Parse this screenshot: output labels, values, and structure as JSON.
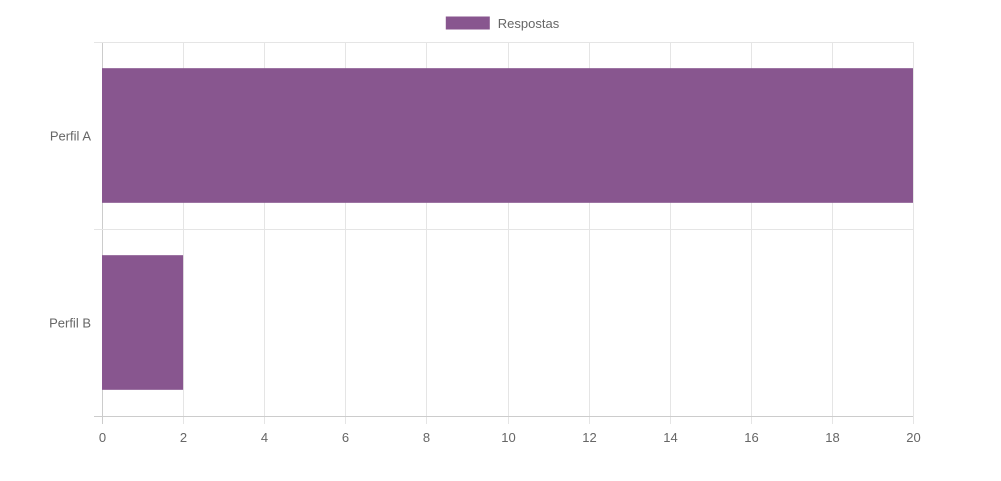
{
  "chart_data": {
    "type": "bar",
    "orientation": "horizontal",
    "categories": [
      "Perfil A",
      "Perfil B"
    ],
    "series": [
      {
        "name": "Respostas",
        "values": [
          20,
          2
        ],
        "color": "#88568f"
      }
    ],
    "xlim": [
      0,
      20
    ],
    "x_ticks": [
      0,
      2,
      4,
      6,
      8,
      10,
      12,
      14,
      16,
      18,
      20
    ],
    "grid": true,
    "legend_position": "top-center"
  },
  "colors": {
    "bar": "#88568f",
    "grid": "#e5e5e5",
    "axis": "#cccccc",
    "text": "#666666"
  }
}
